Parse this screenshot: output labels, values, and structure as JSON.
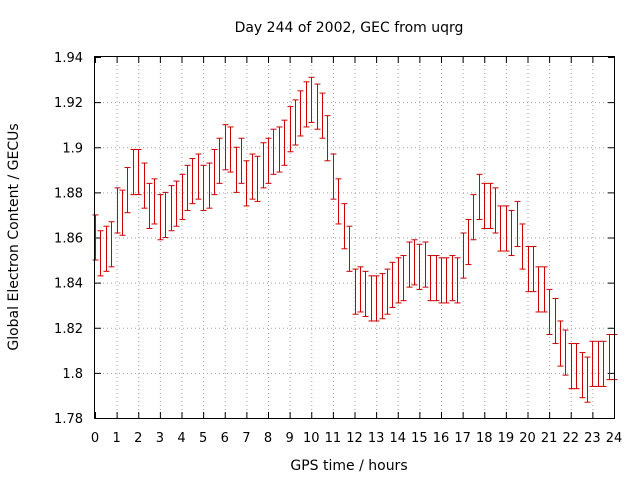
{
  "chart_data": {
    "type": "line",
    "title": "Day 244 of 2002, GEC from uqrg",
    "xlabel": "GPS time / hours",
    "ylabel": "Global Electron Content / GECUs",
    "xlim": [
      0,
      24
    ],
    "ylim": [
      1.78,
      1.94
    ],
    "x_ticks": [
      "0",
      "1",
      "2",
      "3",
      "4",
      "5",
      "6",
      "7",
      "8",
      "9",
      "10",
      "11",
      "12",
      "13",
      "14",
      "15",
      "16",
      "17",
      "18",
      "19",
      "20",
      "21",
      "22",
      "23",
      "24"
    ],
    "y_ticks": [
      "1.78",
      "1.8",
      "1.82",
      "1.84",
      "1.86",
      "1.88",
      "1.9",
      "1.92",
      "1.94"
    ],
    "grid": true,
    "error_bar_half_width": 0.01,
    "series_color": "#cc0000",
    "series": [
      {
        "x": [
          0,
          0.25,
          0.5,
          0.75,
          1,
          1.25,
          1.5,
          1.75,
          2,
          2.25,
          2.5,
          2.75,
          3,
          3.25,
          3.5,
          3.75,
          4,
          4.25,
          4.5,
          4.75,
          5,
          5.25,
          5.5,
          5.75,
          6,
          6.25,
          6.5,
          6.75,
          7,
          7.25,
          7.5,
          7.75,
          8,
          8.25,
          8.5,
          8.75,
          9,
          9.25,
          9.5,
          9.75,
          10,
          10.25,
          10.5,
          10.75,
          11,
          11.25,
          11.5,
          11.75,
          12,
          12.25,
          12.5,
          12.75,
          13,
          13.25,
          13.5,
          13.75,
          14,
          14.25,
          14.5,
          14.75,
          15,
          15.25,
          15.5,
          15.75,
          16,
          16.25,
          16.5,
          16.75,
          17,
          17.25,
          17.5,
          17.75,
          18,
          18.25,
          18.5,
          18.75,
          19,
          19.25,
          19.5,
          19.75,
          20,
          20.25,
          20.5,
          20.75,
          21,
          21.25,
          21.5,
          21.75,
          22,
          22.25,
          22.5,
          22.75,
          23,
          23.25,
          23.5,
          23.75,
          24
        ],
        "values": [
          1.86,
          1.853,
          1.855,
          1.857,
          1.872,
          1.871,
          1.881,
          1.889,
          1.889,
          1.883,
          1.874,
          1.876,
          1.869,
          1.87,
          1.873,
          1.875,
          1.878,
          1.882,
          1.885,
          1.887,
          1.882,
          1.883,
          1.889,
          1.894,
          1.9,
          1.899,
          1.89,
          1.894,
          1.884,
          1.887,
          1.886,
          1.892,
          1.894,
          1.898,
          1.899,
          1.902,
          1.908,
          1.911,
          1.915,
          1.919,
          1.921,
          1.918,
          1.914,
          1.904,
          1.887,
          1.876,
          1.865,
          1.855,
          1.836,
          1.837,
          1.835,
          1.833,
          1.833,
          1.834,
          1.836,
          1.839,
          1.841,
          1.842,
          1.848,
          1.849,
          1.847,
          1.848,
          1.842,
          1.842,
          1.841,
          1.841,
          1.842,
          1.841,
          1.852,
          1.858,
          1.869,
          1.878,
          1.874,
          1.874,
          1.872,
          1.864,
          1.864,
          1.862,
          1.866,
          1.856,
          1.846,
          1.846,
          1.837,
          1.837,
          1.827,
          1.823,
          1.813,
          1.809,
          1.803,
          1.803,
          1.799,
          1.797,
          1.804,
          1.804,
          1.804,
          1.807,
          1.807
        ]
      }
    ]
  }
}
